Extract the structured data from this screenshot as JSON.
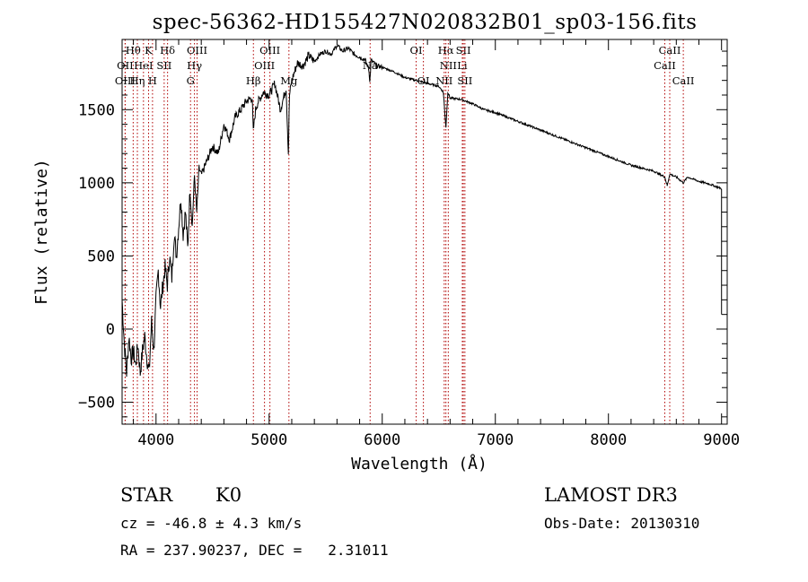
{
  "chart_data": {
    "type": "line",
    "title": "spec-56362-HD155427N020832B01_sp03-156.fits",
    "xlabel": "Wavelength (Å)",
    "ylabel": "Flux (relative)",
    "xlim": [
      3700,
      9050
    ],
    "ylim": [
      -650,
      1980
    ],
    "xticks": [
      4000,
      5000,
      6000,
      7000,
      8000,
      9000
    ],
    "yticks": [
      -500,
      0,
      500,
      1000,
      1500
    ],
    "series": [
      {
        "name": "flux",
        "x": [
          3700,
          3720,
          3740,
          3760,
          3780,
          3800,
          3820,
          3840,
          3860,
          3880,
          3900,
          3920,
          3940,
          3960,
          3980,
          4000,
          4020,
          4040,
          4060,
          4080,
          4100,
          4120,
          4140,
          4160,
          4180,
          4200,
          4220,
          4240,
          4260,
          4280,
          4300,
          4320,
          4340,
          4360,
          4380,
          4400,
          4450,
          4500,
          4550,
          4600,
          4650,
          4700,
          4750,
          4800,
          4850,
          4860,
          4880,
          4900,
          4950,
          5000,
          5050,
          5100,
          5150,
          5170,
          5180,
          5200,
          5250,
          5300,
          5350,
          5400,
          5450,
          5500,
          5550,
          5600,
          5650,
          5700,
          5750,
          5800,
          5850,
          5880,
          5890,
          5896,
          5900,
          5950,
          6000,
          6100,
          6200,
          6300,
          6400,
          6500,
          6540,
          6563,
          6580,
          6600,
          6700,
          6800,
          6900,
          7000,
          7200,
          7400,
          7600,
          7800,
          8000,
          8200,
          8400,
          8498,
          8520,
          8542,
          8600,
          8662,
          8700,
          8800,
          8900,
          9000,
          9000
        ],
        "values": [
          200,
          -100,
          -300,
          -50,
          -200,
          -150,
          -250,
          -100,
          -300,
          -150,
          -50,
          -200,
          -300,
          50,
          -150,
          200,
          400,
          150,
          300,
          420,
          300,
          500,
          350,
          650,
          500,
          700,
          900,
          650,
          800,
          550,
          950,
          700,
          1050,
          800,
          1100,
          1050,
          1150,
          1250,
          1200,
          1400,
          1300,
          1450,
          1500,
          1560,
          1580,
          1350,
          1500,
          1550,
          1620,
          1600,
          1680,
          1500,
          1650,
          1200,
          1600,
          1700,
          1820,
          1800,
          1870,
          1830,
          1880,
          1900,
          1880,
          1940,
          1900,
          1920,
          1880,
          1860,
          1840,
          1780,
          1700,
          1750,
          1840,
          1800,
          1790,
          1760,
          1720,
          1700,
          1680,
          1660,
          1620,
          1380,
          1620,
          1580,
          1570,
          1540,
          1500,
          1480,
          1420,
          1360,
          1300,
          1240,
          1180,
          1120,
          1080,
          1040,
          980,
          1060,
          1040,
          1000,
          1040,
          1010,
          990,
          960,
          100
        ]
      }
    ],
    "lines": [
      {
        "name": "Hθ",
        "wave": 3798,
        "row": 1
      },
      {
        "name": "OII",
        "wave": 3727,
        "row": 2
      },
      {
        "name": "OIII",
        "wave": 3727,
        "row": 3
      },
      {
        "name": "K",
        "wave": 3934,
        "row": 1
      },
      {
        "name": "HeI",
        "wave": 3889,
        "row": 2
      },
      {
        "name": "Hη",
        "wave": 3835,
        "row": 3
      },
      {
        "name": "Hδ",
        "wave": 4102,
        "row": 1
      },
      {
        "name": "SII",
        "wave": 4072,
        "row": 2
      },
      {
        "name": "H",
        "wave": 3969,
        "row": 3
      },
      {
        "name": "OIII",
        "wave": 4363,
        "row": 1
      },
      {
        "name": "Hγ",
        "wave": 4340,
        "row": 2
      },
      {
        "name": "G",
        "wave": 4305,
        "row": 3
      },
      {
        "name": "OIII",
        "wave": 5007,
        "row": 1
      },
      {
        "name": "OIII",
        "wave": 4959,
        "row": 2
      },
      {
        "name": "Hβ",
        "wave": 4861,
        "row": 3
      },
      {
        "name": "Mg",
        "wave": 5175,
        "row": 3
      },
      {
        "name": "Na",
        "wave": 5893,
        "row": 2
      },
      {
        "name": "OI",
        "wave": 6300,
        "row": 1
      },
      {
        "name": "OI",
        "wave": 6364,
        "row": 3
      },
      {
        "name": "Hα",
        "wave": 6563,
        "row": 1
      },
      {
        "name": "NII",
        "wave": 6584,
        "row": 2
      },
      {
        "name": "NII",
        "wave": 6548,
        "row": 3
      },
      {
        "name": "SII",
        "wave": 6717,
        "row": 1
      },
      {
        "name": "Li",
        "wave": 6708,
        "row": 2
      },
      {
        "name": "SII",
        "wave": 6731,
        "row": 3
      },
      {
        "name": "CaII",
        "wave": 8542,
        "row": 1
      },
      {
        "name": "CaII",
        "wave": 8498,
        "row": 2
      },
      {
        "name": "CaII",
        "wave": 8662,
        "row": 3
      }
    ]
  },
  "info": {
    "class": "STAR",
    "subclass": "K0",
    "survey": "LAMOST DR3",
    "cz": "cz = -46.8 ± 4.3 km/s",
    "obs_date": "Obs-Date: 20130310",
    "radec": "RA = 237.90237, DEC =   2.31011"
  },
  "colors": {
    "axis": "#000000",
    "spectrum": "#000000",
    "line_marker": "#b00000"
  }
}
